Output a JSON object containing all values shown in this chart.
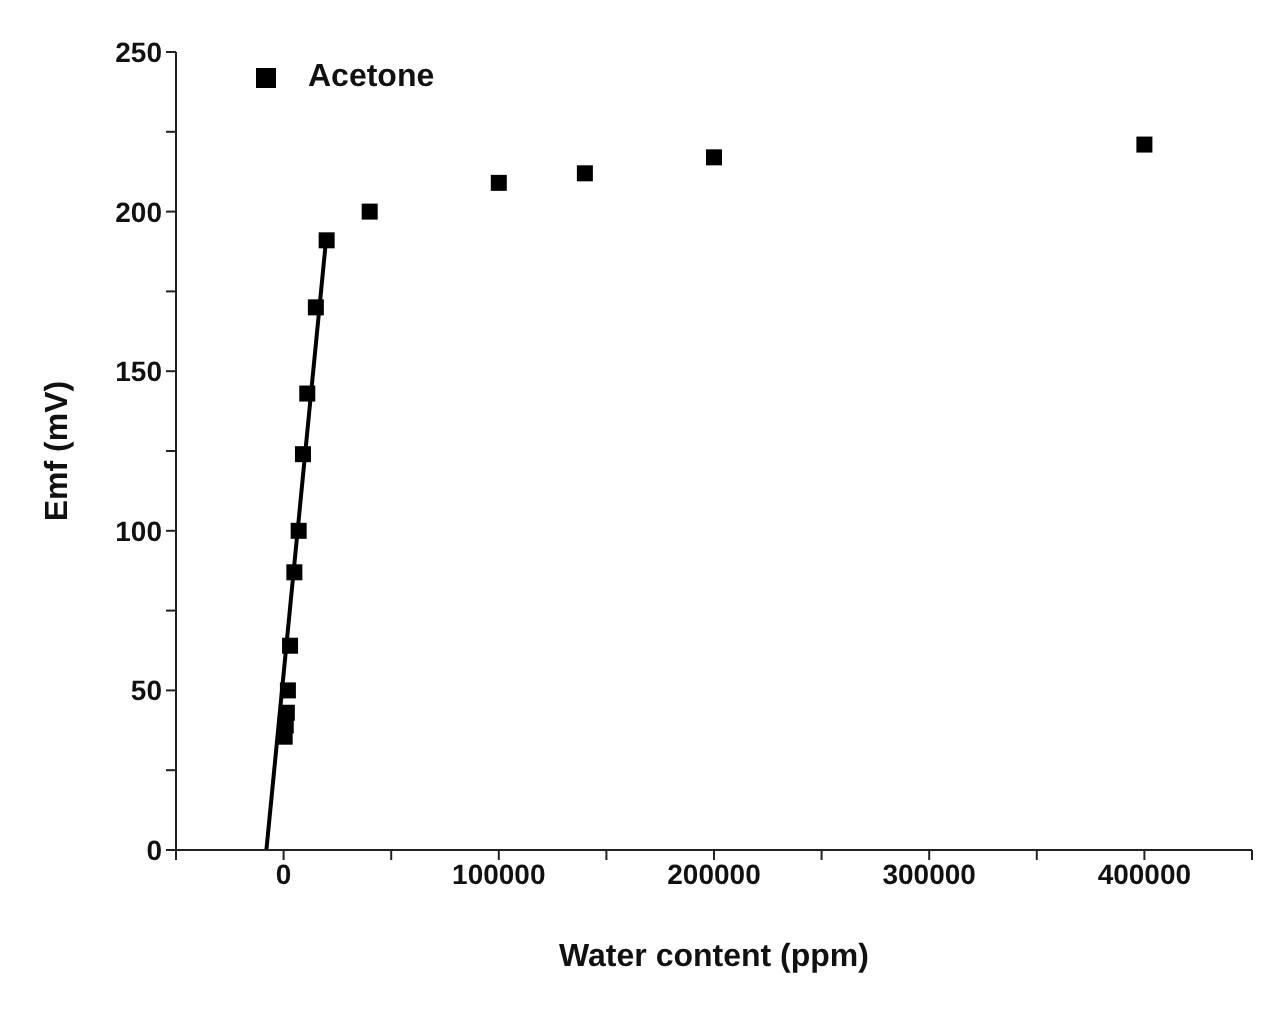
{
  "chart_data": {
    "type": "scatter",
    "xlabel": "Water content (ppm)",
    "ylabel": "Emf (mV)",
    "xlim": [
      -50000,
      450000
    ],
    "xticks": [
      {
        "value": -50000,
        "label": null
      },
      0,
      {
        "value": 50000,
        "label": null
      },
      100000,
      {
        "value": 150000,
        "label": null
      },
      200000,
      {
        "value": 250000,
        "label": null
      },
      300000,
      {
        "value": 350000,
        "label": null
      },
      400000,
      {
        "value": 450000,
        "label": null
      }
    ],
    "ylim": [
      0,
      250
    ],
    "yticks": [
      0,
      {
        "value": 25,
        "label": null
      },
      50,
      {
        "value": 75,
        "label": null
      },
      100,
      {
        "value": 125,
        "label": null
      },
      150,
      {
        "value": 175,
        "label": null
      },
      200,
      {
        "value": 225,
        "label": null
      },
      250
    ],
    "grid": false,
    "legend": "top left",
    "marker": "square",
    "series": [
      {
        "name": "Acetone",
        "color": "#000000",
        "x": [
          500,
          1000,
          1500,
          2000,
          3000,
          5000,
          7000,
          9000,
          11000,
          15000,
          20000,
          40000,
          100000,
          140000,
          200000,
          400000
        ],
        "values": [
          35.5,
          39,
          43,
          50,
          64,
          87,
          100,
          124,
          143,
          170,
          191,
          200,
          209,
          212,
          217,
          221
        ]
      },
      {
        "type": "line",
        "color": "#000000",
        "line_style": "solid",
        "marker": "none",
        "x": [
          -8000,
          20000
        ],
        "values": [
          0,
          193
        ]
      }
    ]
  }
}
